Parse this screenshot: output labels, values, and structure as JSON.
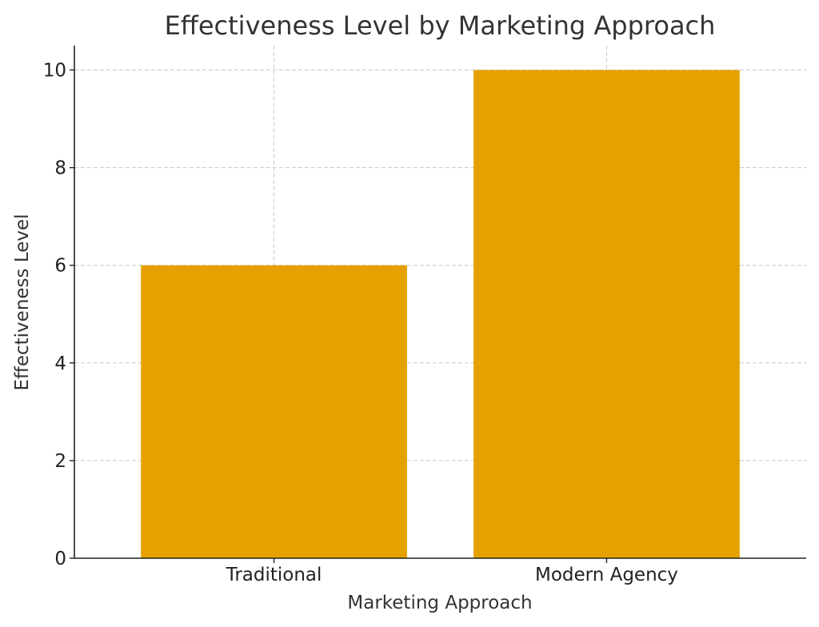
{
  "chart_data": {
    "type": "bar",
    "title": "Effectiveness Level by Marketing Approach",
    "xlabel": "Marketing Approach",
    "ylabel": "Effectiveness Level",
    "categories": [
      "Traditional",
      "Modern Agency"
    ],
    "values": [
      6,
      10
    ],
    "ylim": [
      0,
      10.5
    ],
    "yticks": [
      0,
      2,
      4,
      6,
      8,
      10
    ],
    "grid": true,
    "legend": "none",
    "bar_color": "#E5A100"
  }
}
